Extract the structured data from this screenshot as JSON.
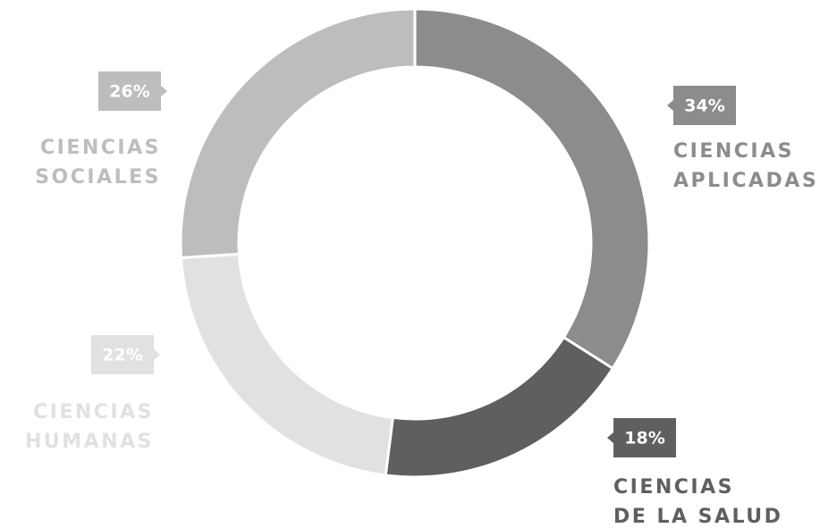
{
  "chart_data": {
    "type": "pie",
    "donut": true,
    "categories": [
      [
        "CIENCIAS",
        "APLICADAS"
      ],
      [
        "CIENCIAS",
        "DE LA SALUD"
      ],
      [
        "CIENCIAS",
        "HUMANAS"
      ],
      [
        "CIENCIAS",
        "SOCIALES"
      ]
    ],
    "values": [
      34,
      18,
      22,
      26
    ],
    "value_labels": [
      "34%",
      "18%",
      "22%",
      "26%"
    ],
    "colors": [
      "#8c8c8c",
      "#5f5f5e",
      "#e1e1e1",
      "#bdbdbd"
    ]
  }
}
